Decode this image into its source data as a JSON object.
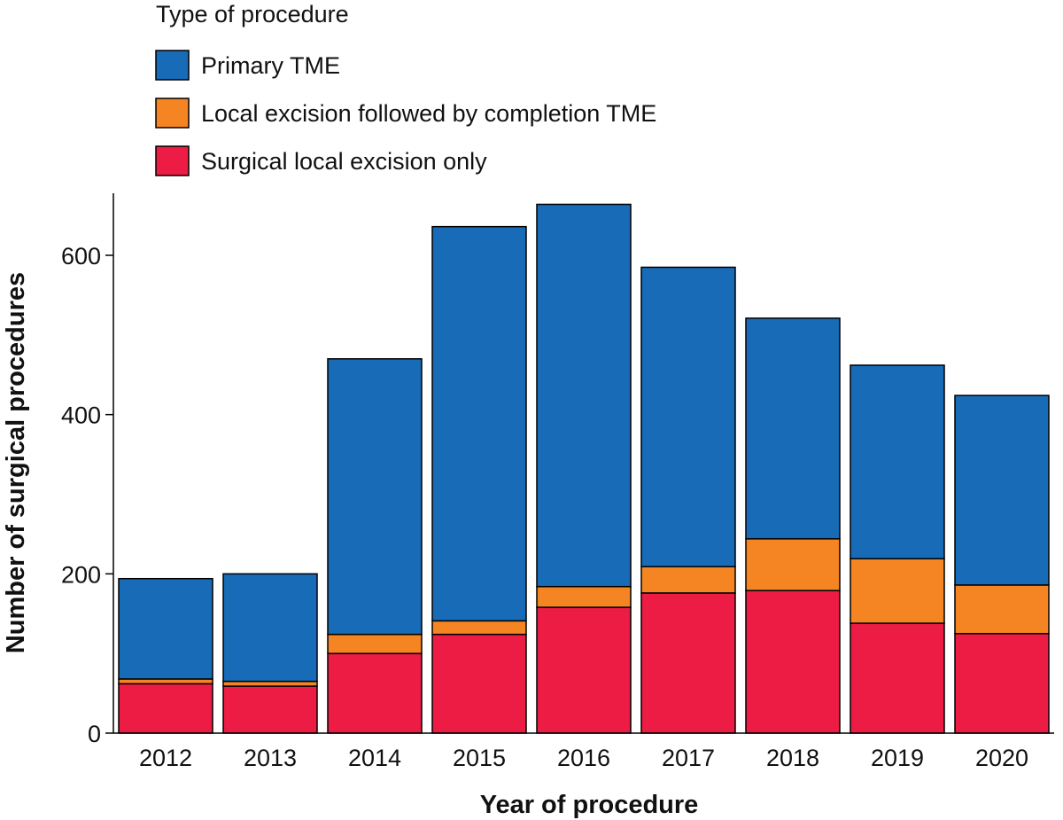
{
  "chart_data": {
    "type": "bar",
    "stacked": true,
    "categories": [
      "2012",
      "2013",
      "2014",
      "2015",
      "2016",
      "2017",
      "2018",
      "2019",
      "2020"
    ],
    "series": [
      {
        "name": "Surgical local excision only",
        "color": "#ec1c45",
        "values": [
          62,
          59,
          100,
          124,
          158,
          176,
          179,
          138,
          125
        ]
      },
      {
        "name": "Local excision followed by completion TME",
        "color": "#f58522",
        "values": [
          6,
          6,
          24,
          17,
          26,
          33,
          65,
          81,
          61
        ]
      },
      {
        "name": "Primary TME",
        "color": "#176bb7",
        "values": [
          126,
          135,
          346,
          495,
          480,
          376,
          277,
          243,
          238
        ]
      }
    ],
    "legend_title": "Type of procedure",
    "legend_placement": "top-left",
    "legend_order": [
      "Primary TME",
      "Local excision followed by completion TME",
      "Surgical local excision only"
    ],
    "xlabel": "Year of procedure",
    "ylabel": "Number of surgical procedures",
    "ylim": [
      0,
      670
    ],
    "yticks": [
      0,
      200,
      400,
      600
    ],
    "grid": false
  }
}
